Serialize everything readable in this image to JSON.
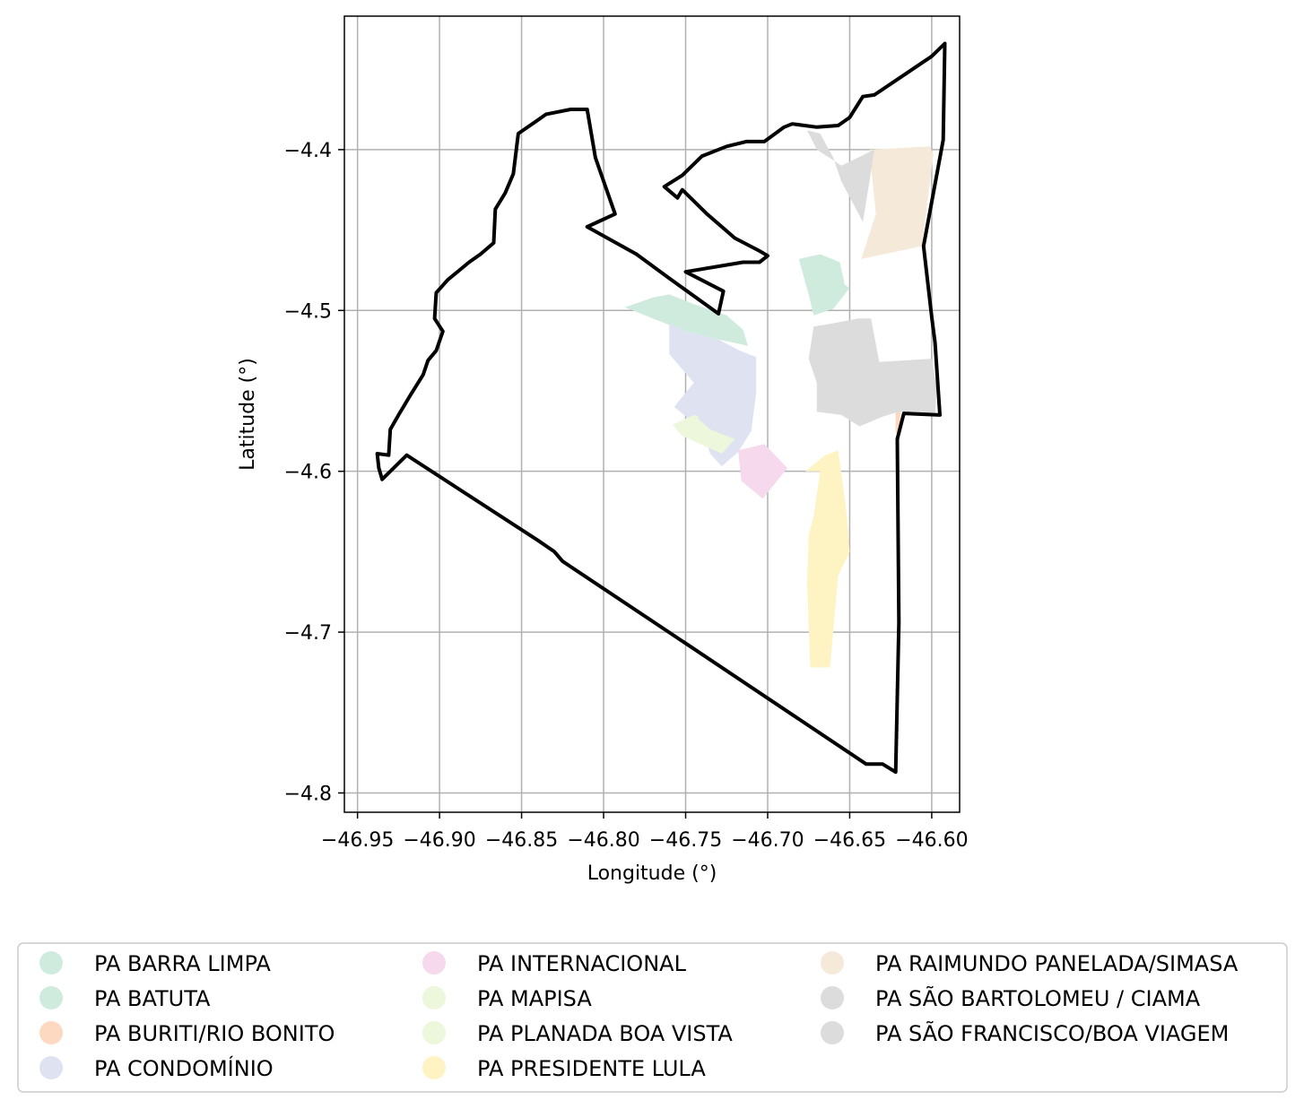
{
  "chart_data": {
    "type": "map",
    "xlabel": "Longitude (°)",
    "ylabel": "Latitude (°)",
    "xlim": [
      -46.958,
      -46.583
    ],
    "ylim": [
      -4.812,
      -4.317
    ],
    "grid": true,
    "x_ticks": [
      {
        "value": -46.95,
        "label": "−46.95"
      },
      {
        "value": -46.9,
        "label": "−46.90"
      },
      {
        "value": -46.85,
        "label": "−46.85"
      },
      {
        "value": -46.8,
        "label": "−46.80"
      },
      {
        "value": -46.75,
        "label": "−46.75"
      },
      {
        "value": -46.7,
        "label": "−46.70"
      },
      {
        "value": -46.65,
        "label": "−46.65"
      },
      {
        "value": -46.6,
        "label": "−46.60"
      }
    ],
    "y_ticks": [
      {
        "value": -4.4,
        "label": "−4.4"
      },
      {
        "value": -4.5,
        "label": "−4.5"
      },
      {
        "value": -4.6,
        "label": "−4.6"
      },
      {
        "value": -4.7,
        "label": "−4.7"
      },
      {
        "value": -4.8,
        "label": "−4.8"
      }
    ],
    "boundary": {
      "color": "#000000",
      "coords": [
        [
          -46.935,
          -4.605
        ],
        [
          -46.92,
          -4.59
        ],
        [
          -46.84,
          -4.643
        ],
        [
          -46.83,
          -4.65
        ],
        [
          -46.825,
          -4.656
        ],
        [
          -46.75,
          -4.707
        ],
        [
          -46.64,
          -4.782
        ],
        [
          -46.63,
          -4.782
        ],
        [
          -46.622,
          -4.787
        ],
        [
          -46.62,
          -4.694
        ],
        [
          -46.621,
          -4.58
        ],
        [
          -46.617,
          -4.564
        ],
        [
          -46.595,
          -4.565
        ],
        [
          -46.598,
          -4.52
        ],
        [
          -46.6,
          -4.504
        ],
        [
          -46.605,
          -4.46
        ],
        [
          -46.593,
          -4.394
        ],
        [
          -46.592,
          -4.334
        ],
        [
          -46.6,
          -4.342
        ],
        [
          -46.635,
          -4.366
        ],
        [
          -46.642,
          -4.367
        ],
        [
          -46.65,
          -4.38
        ],
        [
          -46.657,
          -4.385
        ],
        [
          -46.67,
          -4.386
        ],
        [
          -46.685,
          -4.384
        ],
        [
          -46.69,
          -4.386
        ],
        [
          -46.702,
          -4.395
        ],
        [
          -46.713,
          -4.395
        ],
        [
          -46.725,
          -4.398
        ],
        [
          -46.74,
          -4.404
        ],
        [
          -46.752,
          -4.416
        ],
        [
          -46.763,
          -4.423
        ],
        [
          -46.755,
          -4.43
        ],
        [
          -46.752,
          -4.425
        ],
        [
          -46.737,
          -4.44
        ],
        [
          -46.72,
          -4.455
        ],
        [
          -46.705,
          -4.463
        ],
        [
          -46.7,
          -4.466
        ],
        [
          -46.705,
          -4.47
        ],
        [
          -46.715,
          -4.47
        ],
        [
          -46.75,
          -4.476
        ],
        [
          -46.727,
          -4.488
        ],
        [
          -46.73,
          -4.502
        ],
        [
          -46.76,
          -4.48
        ],
        [
          -46.78,
          -4.465
        ],
        [
          -46.81,
          -4.448
        ],
        [
          -46.793,
          -4.44
        ],
        [
          -46.805,
          -4.405
        ],
        [
          -46.81,
          -4.375
        ],
        [
          -46.82,
          -4.375
        ],
        [
          -46.835,
          -4.378
        ],
        [
          -46.842,
          -4.383
        ],
        [
          -46.852,
          -4.39
        ],
        [
          -46.855,
          -4.415
        ],
        [
          -46.86,
          -4.427
        ],
        [
          -46.866,
          -4.437
        ],
        [
          -46.867,
          -4.458
        ],
        [
          -46.875,
          -4.465
        ],
        [
          -46.882,
          -4.47
        ],
        [
          -46.895,
          -4.481
        ],
        [
          -46.902,
          -4.489
        ],
        [
          -46.903,
          -4.505
        ],
        [
          -46.898,
          -4.513
        ],
        [
          -46.902,
          -4.525
        ],
        [
          -46.907,
          -4.531
        ],
        [
          -46.91,
          -4.54
        ],
        [
          -46.918,
          -4.553
        ],
        [
          -46.925,
          -4.565
        ],
        [
          -46.93,
          -4.574
        ],
        [
          -46.931,
          -4.59
        ],
        [
          -46.938,
          -4.589
        ],
        [
          -46.937,
          -4.598
        ],
        [
          -46.935,
          -4.605
        ]
      ]
    },
    "regions": [
      {
        "name": "PA BARRA LIMPA",
        "color": "#cfebde",
        "coords": [
          [
            -46.787,
            -4.498
          ],
          [
            -46.77,
            -4.492
          ],
          [
            -46.76,
            -4.49
          ],
          [
            -46.745,
            -4.496
          ],
          [
            -46.725,
            -4.503
          ],
          [
            -46.715,
            -4.512
          ],
          [
            -46.712,
            -4.522
          ],
          [
            -46.73,
            -4.518
          ],
          [
            -46.75,
            -4.513
          ],
          [
            -46.77,
            -4.505
          ]
        ]
      },
      {
        "name": "PA BATUTA",
        "color": "#cfebde",
        "coords": [
          [
            -46.681,
            -4.468
          ],
          [
            -46.668,
            -4.465
          ],
          [
            -46.656,
            -4.47
          ],
          [
            -46.653,
            -4.484
          ],
          [
            -46.65,
            -4.486
          ],
          [
            -46.66,
            -4.499
          ],
          [
            -46.672,
            -4.503
          ],
          [
            -46.675,
            -4.49
          ]
        ]
      },
      {
        "name": "PA BURITI/RIO BONITO",
        "color": "#fdd9c2",
        "coords": [
          [
            -46.622,
            -4.563
          ],
          [
            -46.619,
            -4.563
          ],
          [
            -46.62,
            -4.577
          ],
          [
            -46.622,
            -4.576
          ]
        ]
      },
      {
        "name": "PA CONDOMÍNIO",
        "color": "#dfe3f1",
        "coords": [
          [
            -46.76,
            -4.508
          ],
          [
            -46.75,
            -4.513
          ],
          [
            -46.73,
            -4.518
          ],
          [
            -46.717,
            -4.525
          ],
          [
            -46.707,
            -4.529
          ],
          [
            -46.707,
            -4.551
          ],
          [
            -46.71,
            -4.575
          ],
          [
            -46.718,
            -4.588
          ],
          [
            -46.728,
            -4.597
          ],
          [
            -46.735,
            -4.589
          ],
          [
            -46.74,
            -4.574
          ],
          [
            -46.757,
            -4.56
          ],
          [
            -46.745,
            -4.545
          ],
          [
            -46.76,
            -4.527
          ]
        ]
      },
      {
        "name": "PA INTERNACIONAL",
        "color": "#f6d9ec",
        "coords": [
          [
            -46.718,
            -4.587
          ],
          [
            -46.702,
            -4.583
          ],
          [
            -46.688,
            -4.598
          ],
          [
            -46.703,
            -4.617
          ],
          [
            -46.716,
            -4.606
          ]
        ]
      },
      {
        "name": "PA MAPISA",
        "color": "#ecf7db",
        "coords": [
          [
            -46.758,
            -4.571
          ],
          [
            -46.745,
            -4.565
          ],
          [
            -46.735,
            -4.574
          ],
          [
            -46.72,
            -4.58
          ],
          [
            -46.728,
            -4.589
          ],
          [
            -46.752,
            -4.578
          ]
        ]
      },
      {
        "name": "PA PLANADA BOA VISTA",
        "color": "#ecf7db",
        "coords": [
          [
            -46.745,
            -4.565
          ],
          [
            -46.742,
            -4.566
          ],
          [
            -46.744,
            -4.571
          ],
          [
            -46.748,
            -4.568
          ]
        ]
      },
      {
        "name": "PA PRESIDENTE LULA",
        "color": "#fef4c3",
        "coords": [
          [
            -46.677,
            -4.6
          ],
          [
            -46.665,
            -4.59
          ],
          [
            -46.657,
            -4.587
          ],
          [
            -46.652,
            -4.625
          ],
          [
            -46.65,
            -4.65
          ],
          [
            -46.657,
            -4.665
          ],
          [
            -46.662,
            -4.722
          ],
          [
            -46.674,
            -4.722
          ],
          [
            -46.676,
            -4.67
          ],
          [
            -46.675,
            -4.64
          ],
          [
            -46.672,
            -4.628
          ],
          [
            -46.668,
            -4.6
          ]
        ]
      },
      {
        "name": "PA RAIMUNDO PANELADA/SIMASA",
        "color": "#f5e9da",
        "coords": [
          [
            -46.638,
            -4.4
          ],
          [
            -46.601,
            -4.398
          ],
          [
            -46.599,
            -4.403
          ],
          [
            -46.606,
            -4.46
          ],
          [
            -46.643,
            -4.468
          ],
          [
            -46.634,
            -4.44
          ],
          [
            -46.636,
            -4.42
          ]
        ]
      },
      {
        "name": "PA SÃO BARTOLOMEU / CIAMA",
        "color": "#dcdcdc",
        "coords": [
          [
            -46.676,
            -4.388
          ],
          [
            -46.668,
            -4.39
          ],
          [
            -46.66,
            -4.405
          ],
          [
            -46.655,
            -4.42
          ],
          [
            -46.642,
            -4.445
          ],
          [
            -46.638,
            -4.42
          ],
          [
            -46.635,
            -4.4
          ],
          [
            -46.645,
            -4.405
          ],
          [
            -46.655,
            -4.41
          ],
          [
            -46.67,
            -4.4
          ]
        ]
      },
      {
        "name": "PA SÃO FRANCISCO/BOA VIAGEM",
        "color": "#dcdcdc",
        "coords": [
          [
            -46.672,
            -4.51
          ],
          [
            -46.66,
            -4.508
          ],
          [
            -46.645,
            -4.505
          ],
          [
            -46.637,
            -4.505
          ],
          [
            -46.632,
            -4.532
          ],
          [
            -46.6,
            -4.53
          ],
          [
            -46.597,
            -4.548
          ],
          [
            -46.598,
            -4.565
          ],
          [
            -46.62,
            -4.563
          ],
          [
            -46.63,
            -4.566
          ],
          [
            -46.644,
            -4.572
          ],
          [
            -46.655,
            -4.565
          ],
          [
            -46.67,
            -4.563
          ],
          [
            -46.67,
            -4.545
          ],
          [
            -46.675,
            -4.53
          ]
        ]
      }
    ],
    "legend": {
      "placement": "bottom",
      "columns": [
        [
          "PA BARRA LIMPA",
          "PA BATUTA",
          "PA BURITI/RIO BONITO",
          "PA CONDOMÍNIO"
        ],
        [
          "PA INTERNACIONAL",
          "PA MAPISA",
          "PA PLANADA BOA VISTA",
          "PA PRESIDENTE LULA"
        ],
        [
          "PA RAIMUNDO PANELADA/SIMASA",
          "PA SÃO BARTOLOMEU / CIAMA",
          "PA SÃO FRANCISCO/BOA VIAGEM"
        ]
      ]
    }
  }
}
